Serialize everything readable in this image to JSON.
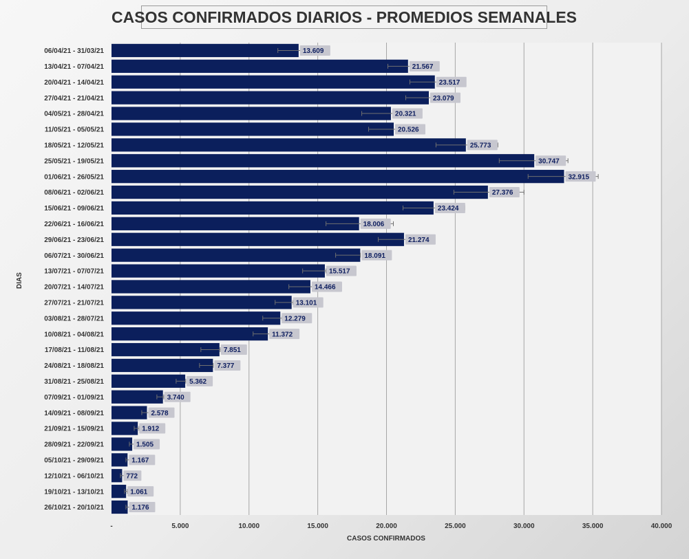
{
  "chart_data": {
    "type": "bar",
    "orientation": "horizontal",
    "title": "CASOS CONFIRMADOS DIARIOS - PROMEDIOS SEMANALES",
    "xlabel": "CASOS CONFIRMADOS",
    "ylabel": "DIAS",
    "xlim": [
      0,
      40000
    ],
    "x_ticks": [
      "-",
      "5.000",
      "10.000",
      "15.000",
      "20.000",
      "25.000",
      "30.000",
      "35.000",
      "40.000"
    ],
    "grid": true,
    "legend": "none",
    "error_bars": true,
    "bar_color": "#0b1f5c",
    "categories": [
      "06/04/21 - 31/03/21",
      "13/04/21 - 07/04/21",
      "20/04/21 - 14/04/21",
      "27/04/21 - 21/04/21",
      "04/05/21 - 28/04/21",
      "11/05/21 - 05/05/21",
      "18/05/21 - 12/05/21",
      "25/05/21 - 19/05/21",
      "01/06/21 - 26/05/21",
      "08/06/21 - 02/06/21",
      "15/06/21 - 09/06/21",
      "22/06/21 - 16/06/21",
      "29/06/21 - 23/06/21",
      "06/07/21 - 30/06/21",
      "13/07/21 - 07/07/21",
      "20/07/21 - 14/07/21",
      "27/07/21 - 21/07/21",
      "03/08/21 - 28/07/21",
      "10/08/21 - 04/08/21",
      "17/08/21 - 11/08/21",
      "24/08/21 - 18/08/21",
      "31/08/21 - 25/08/21",
      "07/09/21 - 01/09/21",
      "14/09/21 - 08/09/21",
      "21/09/21 - 15/09/21",
      "28/09/21 - 22/09/21",
      "05/10/21 - 29/09/21",
      "12/10/21 - 06/10/21",
      "19/10/21 - 13/10/21",
      "26/10/21 - 20/10/21"
    ],
    "values": [
      13609,
      21567,
      23517,
      23079,
      20321,
      20526,
      25773,
      30747,
      32915,
      27376,
      23424,
      18006,
      21274,
      18091,
      15517,
      14466,
      13101,
      12279,
      11372,
      7851,
      7377,
      5362,
      3740,
      2578,
      1912,
      1505,
      1167,
      772,
      1061,
      1176
    ],
    "value_labels": [
      "13.609",
      "21.567",
      "23.517",
      "23.079",
      "20.321",
      "20.526",
      "25.773",
      "30.747",
      "32.915",
      "27.376",
      "23.424",
      "18.006",
      "21.274",
      "18.091",
      "15.517",
      "14.466",
      "13.101",
      "12.279",
      "11.372",
      "7.851",
      "7.377",
      "5.362",
      "3.740",
      "2.578",
      "1.912",
      "1.505",
      "1.167",
      "772",
      "1.061",
      "1.176"
    ],
    "error_low": [
      12100,
      20100,
      21700,
      21400,
      18200,
      18700,
      23600,
      28200,
      30300,
      24900,
      21200,
      15600,
      19400,
      16300,
      13900,
      12900,
      11900,
      11000,
      10300,
      6500,
      6400,
      4700,
      3300,
      2200,
      1650,
      1300,
      1050,
      650,
      950,
      1050
    ],
    "error_high": [
      13900,
      22000,
      23800,
      23400,
      22400,
      21500,
      28100,
      33200,
      35400,
      30000,
      25700,
      20500,
      21500,
      18100,
      15600,
      14600,
      13200,
      12400,
      11500,
      7900,
      7400,
      5400,
      3800,
      2700,
      2000,
      1650,
      1300,
      900,
      1150,
      1300
    ]
  }
}
